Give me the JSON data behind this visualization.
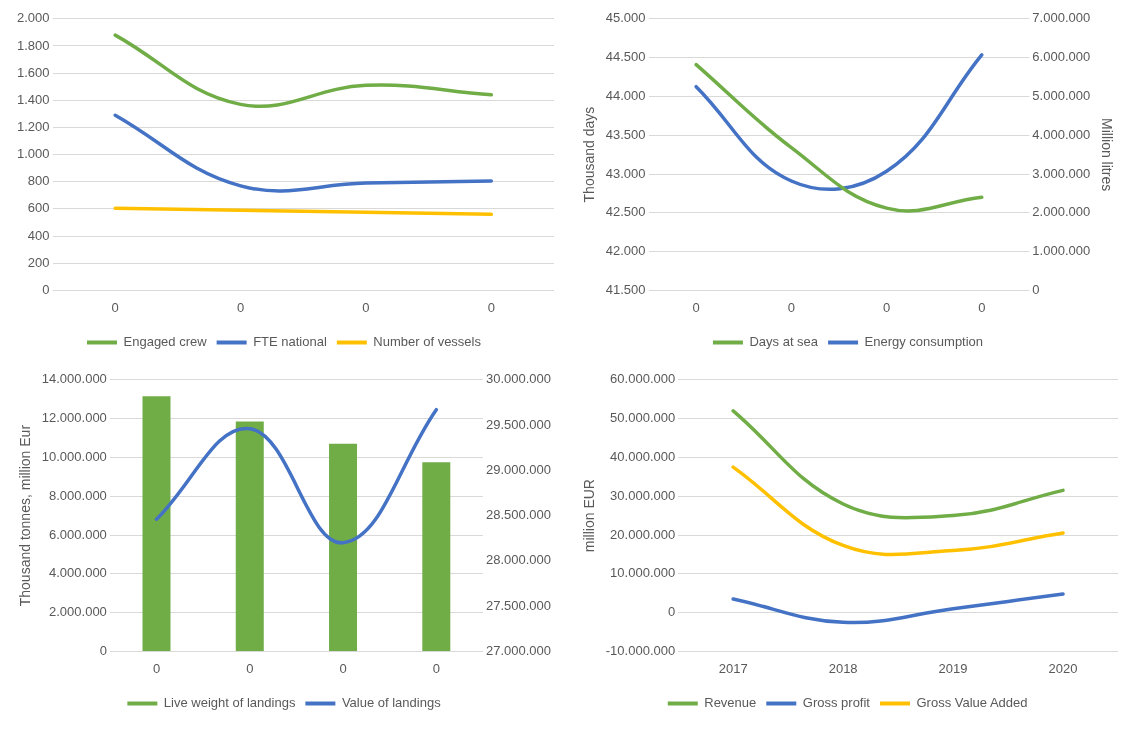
{
  "chart_data": [
    {
      "type": "line",
      "categories": [
        "0",
        "0",
        "0",
        "0"
      ],
      "series": [
        {
          "name": "Engaged crew",
          "color": "#70ad47",
          "values": [
            1880,
            1370,
            1510,
            1440
          ]
        },
        {
          "name": "FTE national",
          "color": "#4472c4",
          "values": [
            1290,
            770,
            790,
            805
          ]
        },
        {
          "name": "Number of vessels",
          "color": "#ffc000",
          "values": [
            605,
            590,
            575,
            560
          ]
        }
      ],
      "ylim": [
        0,
        2000
      ],
      "yticks": [
        0,
        200,
        400,
        600,
        800,
        {
          "value": 1000,
          "label": "1.000"
        },
        {
          "value": 1200,
          "label": "1.200"
        },
        {
          "value": 1400,
          "label": "1.400"
        },
        {
          "value": 1600,
          "label": "1.600"
        },
        {
          "value": 1800,
          "label": "1.800"
        },
        {
          "value": 2000,
          "label": "2.000"
        }
      ],
      "grid": "y",
      "legend": "bottom"
    },
    {
      "type": "line",
      "categories": [
        "0",
        "0",
        "0",
        "0"
      ],
      "ylabel": "Thousand days",
      "y2label": "Million litres",
      "series": [
        {
          "name": "Days at sea",
          "color": "#70ad47",
          "values": [
            44410,
            43340,
            42560,
            42700
          ]
        },
        {
          "name": "Energy consumption",
          "color": "#4472c4",
          "axis": "y2",
          "values": [
            5250000,
            2820000,
            3070000,
            6070000
          ]
        }
      ],
      "ylim": [
        41500,
        45000
      ],
      "yticks": [
        {
          "value": 41500,
          "label": "41.500"
        },
        {
          "value": 42000,
          "label": "42.000"
        },
        {
          "value": 42500,
          "label": "42.500"
        },
        {
          "value": 43000,
          "label": "43.000"
        },
        {
          "value": 43500,
          "label": "43.500"
        },
        {
          "value": 44000,
          "label": "44.000"
        },
        {
          "value": 44500,
          "label": "44.500"
        },
        {
          "value": 45000,
          "label": "45.000"
        }
      ],
      "y2lim": [
        0,
        7000000
      ],
      "y2ticks": [
        0,
        {
          "value": 1000000,
          "label": "1.000.000"
        },
        {
          "value": 2000000,
          "label": "2.000.000"
        },
        {
          "value": 3000000,
          "label": "3.000.000"
        },
        {
          "value": 4000000,
          "label": "4.000.000"
        },
        {
          "value": 5000000,
          "label": "5.000.000"
        },
        {
          "value": 6000000,
          "label": "6.000.000"
        },
        {
          "value": 7000000,
          "label": "7.000.000"
        }
      ],
      "grid": "y",
      "legend": "bottom"
    },
    {
      "type": "bar",
      "categories": [
        "0",
        "0",
        "0",
        "0"
      ],
      "ylabel": "Thousand tonnes, million Eur",
      "series": [
        {
          "name": "Live weight of landings",
          "color": "#70ad47",
          "values": [
            13150000,
            11850000,
            10700000,
            9750000
          ]
        },
        {
          "name": "Value of landings",
          "type": "line",
          "color": "#4472c4",
          "axis": "y2",
          "values": [
            28460000,
            29460000,
            28200000,
            29670000
          ]
        }
      ],
      "ylim": [
        0,
        14000000
      ],
      "yticks": [
        0,
        {
          "value": 2000000,
          "label": "2.000.000"
        },
        {
          "value": 4000000,
          "label": "4.000.000"
        },
        {
          "value": 6000000,
          "label": "6.000.000"
        },
        {
          "value": 8000000,
          "label": "8.000.000"
        },
        {
          "value": 10000000,
          "label": "10.000.000"
        },
        {
          "value": 12000000,
          "label": "12.000.000"
        },
        {
          "value": 14000000,
          "label": "14.000.000"
        }
      ],
      "y2lim": [
        27000000,
        30000000
      ],
      "y2ticks": [
        {
          "value": 27000000,
          "label": "27.000.000"
        },
        {
          "value": 27500000,
          "label": "27.500.000"
        },
        {
          "value": 28000000,
          "label": "28.000.000"
        },
        {
          "value": 28500000,
          "label": "28.500.000"
        },
        {
          "value": 29000000,
          "label": "29.000.000"
        },
        {
          "value": 29500000,
          "label": "29.500.000"
        },
        {
          "value": 30000000,
          "label": "30.000.000"
        }
      ],
      "grid": "y",
      "legend": "bottom"
    },
    {
      "type": "line",
      "categories": [
        "2017",
        "2018",
        "2019",
        "2020"
      ],
      "ylabel": "million EUR",
      "series": [
        {
          "name": "Revenue",
          "color": "#70ad47",
          "values": [
            52000000,
            28000000,
            25000000,
            31500000
          ]
        },
        {
          "name": "Gross profit",
          "color": "#4472c4",
          "values": [
            3500000,
            -2500000,
            1000000,
            4800000
          ]
        },
        {
          "name": "Gross Value Added",
          "color": "#ffc000",
          "values": [
            37500000,
            17300000,
            16000000,
            20500000
          ]
        }
      ],
      "ylim": [
        -10000000,
        60000000
      ],
      "yticks": [
        {
          "value": -10000000,
          "label": "-10.000.000"
        },
        0,
        {
          "value": 10000000,
          "label": "10.000.000"
        },
        {
          "value": 20000000,
          "label": "20.000.000"
        },
        {
          "value": 30000000,
          "label": "30.000.000"
        },
        {
          "value": 40000000,
          "label": "40.000.000"
        },
        {
          "value": 50000000,
          "label": "50.000.000"
        },
        {
          "value": 60000000,
          "label": "60.000.000"
        }
      ],
      "grid": "y",
      "legend": "bottom"
    }
  ]
}
